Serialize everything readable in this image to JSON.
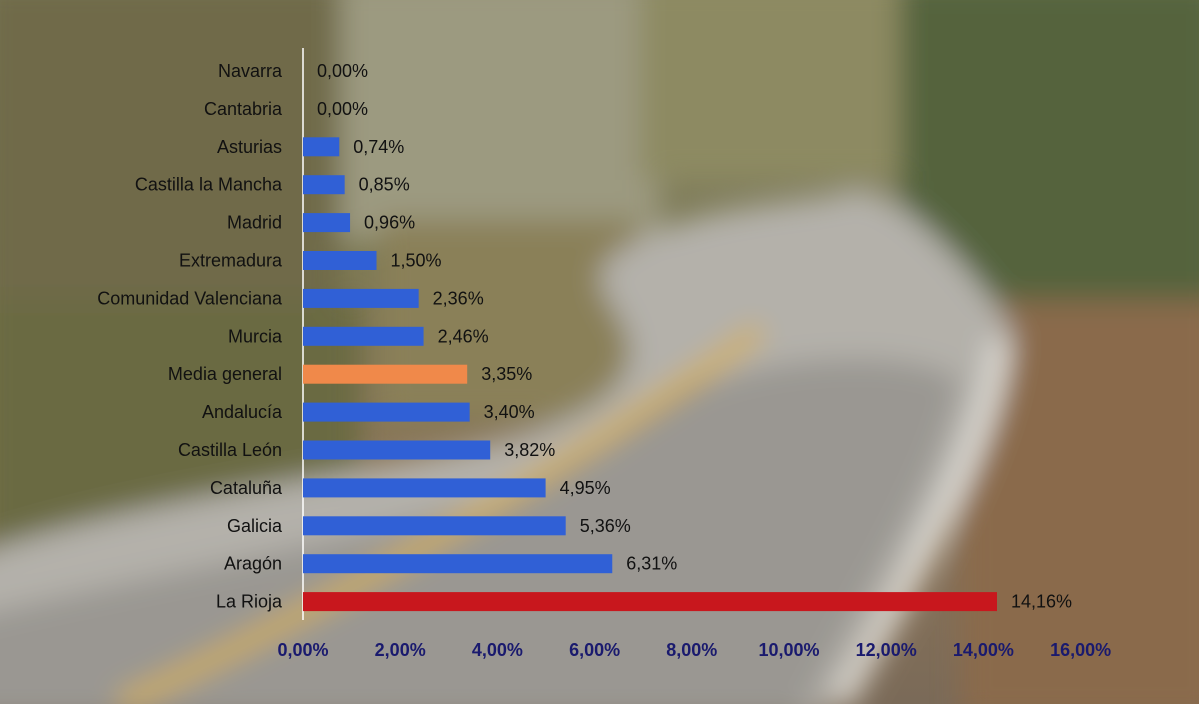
{
  "chart_data": {
    "type": "bar",
    "orientation": "horizontal",
    "categories": [
      "Navarra",
      "Cantabria",
      "Asturias",
      "Castilla la Mancha",
      "Madrid",
      "Extremadura",
      "Comunidad Valenciana",
      "Murcia",
      "Media general",
      "Andalucía",
      "Castilla León",
      "Cataluña",
      "Galicia",
      "Aragón",
      "La Rioja"
    ],
    "values": [
      0.0,
      0.0,
      0.74,
      0.85,
      0.96,
      1.5,
      2.36,
      2.46,
      3.35,
      3.4,
      3.82,
      4.95,
      5.36,
      6.31,
      14.16
    ],
    "value_labels": [
      "0,00%",
      "0,00%",
      "0,74%",
      "0,85%",
      "0,96%",
      "1,50%",
      "2,36%",
      "2,46%",
      "3,35%",
      "3,40%",
      "3,82%",
      "4,95%",
      "5,36%",
      "6,31%",
      "14,16%"
    ],
    "bar_colors": [
      "#3060d6",
      "#3060d6",
      "#3060d6",
      "#3060d6",
      "#3060d6",
      "#3060d6",
      "#3060d6",
      "#3060d6",
      "#f0894a",
      "#3060d6",
      "#3060d6",
      "#3060d6",
      "#3060d6",
      "#3060d6",
      "#c8171d"
    ],
    "xlim": [
      0,
      16
    ],
    "xticks": [
      0,
      2,
      4,
      6,
      8,
      10,
      12,
      14,
      16
    ],
    "xtick_labels": [
      "0,00%",
      "2,00%",
      "4,00%",
      "6,00%",
      "8,00%",
      "10,00%",
      "12,00%",
      "14,00%",
      "16,00%"
    ],
    "title": "",
    "xlabel": "",
    "ylabel": "",
    "grid": false,
    "legend": "none"
  }
}
